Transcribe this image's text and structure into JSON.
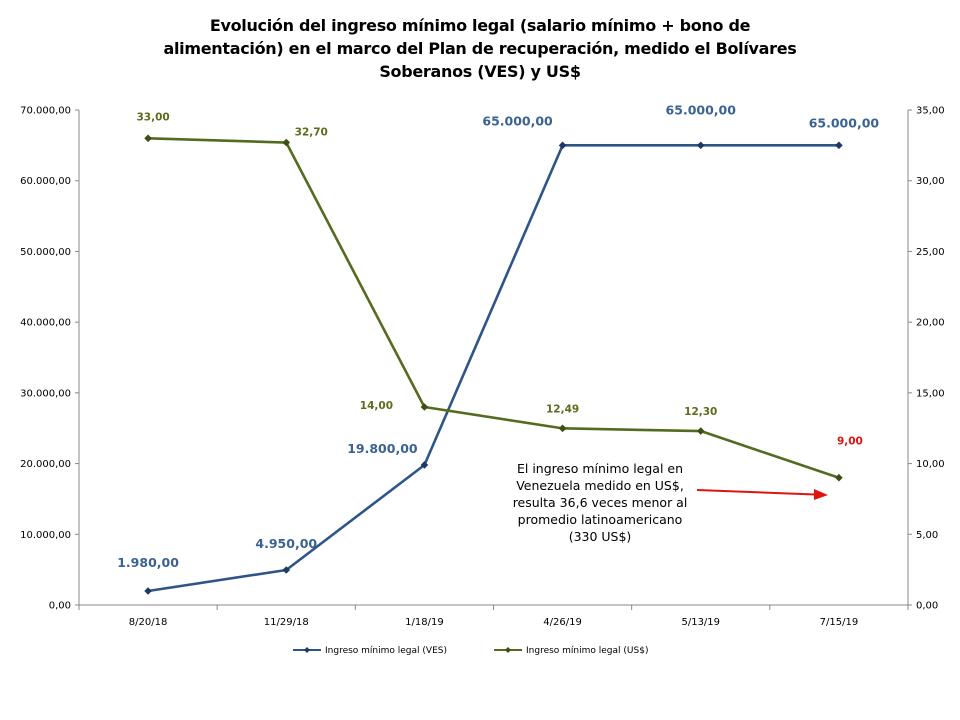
{
  "chart_data": {
    "type": "line",
    "title": "Evolución del ingreso mínimo legal (salario mínimo + bono de alimentación) en el marco del Plan de recuperación, medido el Bolívares Soberanos (VES) y US$",
    "categories": [
      "8/20/18",
      "11/29/18",
      "1/18/19",
      "4/26/19",
      "5/13/19",
      "7/15/19"
    ],
    "y_left": {
      "range": [
        0,
        70000
      ],
      "ticks": [
        "0,00",
        "10.000,00",
        "20.000,00",
        "30.000,00",
        "40.000,00",
        "50.000,00",
        "60.000,00",
        "70.000,00"
      ]
    },
    "y_right": {
      "range": [
        0,
        35
      ],
      "ticks": [
        "0,00",
        "5,00",
        "10,00",
        "15,00",
        "20,00",
        "25,00",
        "30,00",
        "35,00"
      ]
    },
    "series": [
      {
        "name": "Ingreso mínimo legal (VES)",
        "axis": "left",
        "color": "#2e5587",
        "values": [
          1980,
          4950,
          19800,
          65000,
          65000,
          65000
        ],
        "labels": [
          "1.980,00",
          "4.950,00",
          "19.800,00",
          "65.000,00",
          "65.000,00",
          "65.000,00"
        ]
      },
      {
        "name": "Ingreso mínimo legal (US$)",
        "axis": "right",
        "color": "#556b1f",
        "values": [
          33.0,
          32.7,
          14.0,
          12.49,
          12.3,
          9.0
        ],
        "labels": [
          "33,00",
          "32,70",
          "14,00",
          "12,49",
          "12,30",
          "9,00"
        ]
      }
    ],
    "legend_position": "bottom",
    "annotation": {
      "lines": [
        "El ingreso mínimo legal en",
        "Venezuela medido en US$,",
        "resulta 36,6 veces menor al",
        "promedio latinoamericano",
        "(330 US$)"
      ],
      "arrow_color": "#e0140f"
    }
  }
}
